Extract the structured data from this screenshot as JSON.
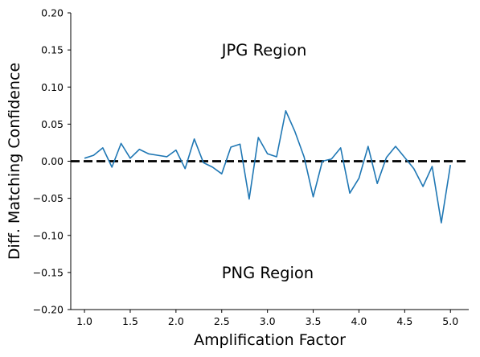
{
  "chart_data": {
    "type": "line",
    "xlabel": "Amplification Factor",
    "ylabel": "Diff. Matching Confidence",
    "xlim": [
      0.85,
      5.2
    ],
    "ylim": [
      -0.2,
      0.2
    ],
    "x_ticks": [
      "1.0",
      "1.5",
      "2.0",
      "2.5",
      "3.0",
      "3.5",
      "4.0",
      "4.5",
      "5.0"
    ],
    "x_tick_values": [
      1.0,
      1.5,
      2.0,
      2.5,
      3.0,
      3.5,
      4.0,
      4.5,
      5.0
    ],
    "y_ticks": [
      "−0.20",
      "−0.15",
      "−0.10",
      "−0.05",
      "0.00",
      "0.05",
      "0.10",
      "0.15",
      "0.20"
    ],
    "y_tick_values": [
      -0.2,
      -0.15,
      -0.1,
      -0.05,
      0.0,
      0.05,
      0.1,
      0.15,
      0.2
    ],
    "grid": false,
    "series": [
      {
        "color": "#1f77b4",
        "x": [
          1.0,
          1.1,
          1.2,
          1.3,
          1.4,
          1.5,
          1.6,
          1.7,
          1.8,
          1.9,
          2.0,
          2.1,
          2.2,
          2.3,
          2.4,
          2.5,
          2.6,
          2.7,
          2.8,
          2.9,
          3.0,
          3.1,
          3.2,
          3.3,
          3.4,
          3.5,
          3.6,
          3.7,
          3.8,
          3.9,
          4.0,
          4.1,
          4.2,
          4.3,
          4.4,
          4.5,
          4.6,
          4.7,
          4.8,
          4.9,
          5.0
        ],
        "values": [
          0.004,
          0.008,
          0.018,
          -0.008,
          0.024,
          0.004,
          0.016,
          0.01,
          0.008,
          0.006,
          0.015,
          -0.01,
          0.03,
          -0.002,
          -0.008,
          -0.017,
          0.019,
          0.023,
          -0.051,
          0.032,
          0.01,
          0.006,
          0.068,
          0.04,
          0.006,
          -0.048,
          0.0,
          0.003,
          0.018,
          -0.043,
          -0.023,
          0.02,
          -0.03,
          0.005,
          0.02,
          0.005,
          -0.01,
          -0.034,
          -0.007,
          -0.083,
          -0.005
        ]
      }
    ],
    "reference_line": {
      "y": 0.0,
      "style": "dashed",
      "color": "#000000"
    },
    "annotations": [
      {
        "text": "JPG Region",
        "x": 2.5,
        "y": 0.15
      },
      {
        "text": "PNG Region",
        "x": 2.5,
        "y": -0.15
      }
    ]
  }
}
